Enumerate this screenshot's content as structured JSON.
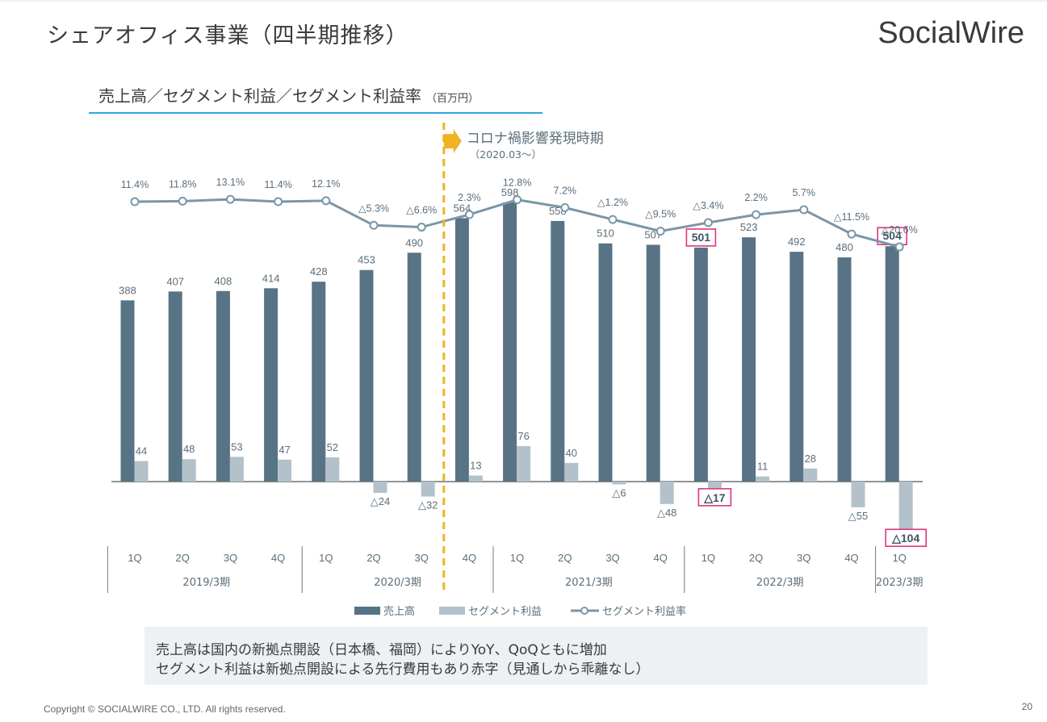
{
  "slide": {
    "title": "シェアオフィス事業（四半期推移）",
    "logo_text": "SocialWire",
    "section_heading": "売上高／セグメント利益／セグメント利益率",
    "section_unit": "（百万円）",
    "summary": [
      "売上高は国内の新拠点開設（日本橋、福岡）によりYoY、QoQともに増加",
      "セグメント利益は新拠点開設による先行費用もあり赤字（見通しから乖離なし）"
    ],
    "copyright": "Copyright © SOCIALWIRE CO., LTD. All rights reserved.",
    "page_number": "20"
  },
  "chart_data": {
    "type": "bar",
    "categories": [
      "1Q",
      "2Q",
      "3Q",
      "4Q",
      "1Q",
      "2Q",
      "3Q",
      "4Q",
      "1Q",
      "2Q",
      "3Q",
      "4Q",
      "1Q",
      "2Q",
      "3Q",
      "4Q",
      "1Q"
    ],
    "groups": [
      {
        "label": "2019/3期",
        "count": 4
      },
      {
        "label": "2020/3期",
        "count": 4
      },
      {
        "label": "2021/3期",
        "count": 4
      },
      {
        "label": "2022/3期",
        "count": 4
      },
      {
        "label": "2023/3期",
        "count": 1
      }
    ],
    "series": [
      {
        "name": "売上高",
        "kind": "bar",
        "color": "#587385",
        "values": [
          388,
          407,
          408,
          414,
          428,
          453,
          490,
          564,
          598,
          558,
          510,
          507,
          501,
          523,
          492,
          480,
          504
        ],
        "labels": [
          "388",
          "407",
          "408",
          "414",
          "428",
          "453",
          "490",
          "564",
          "598",
          "558",
          "510",
          "507",
          "501",
          "523",
          "492",
          "480",
          "504"
        ],
        "highlight": [
          12,
          16
        ]
      },
      {
        "name": "セグメント利益",
        "kind": "bar",
        "color": "#b3c1cb",
        "values": [
          44,
          48,
          53,
          47,
          52,
          -24,
          -32,
          13,
          76,
          40,
          -6,
          -48,
          -17,
          11,
          28,
          -55,
          -104
        ],
        "labels": [
          "44",
          "48",
          "53",
          "47",
          "52",
          "△24",
          "△32",
          "13",
          "76",
          "40",
          "△6",
          "△48",
          "△17",
          "11",
          "28",
          "△55",
          "△104"
        ],
        "highlight": [
          12,
          16
        ]
      },
      {
        "name": "セグメント利益率",
        "kind": "line",
        "color": "#7b96a8",
        "values": [
          11.4,
          11.8,
          13.1,
          11.4,
          12.1,
          -5.3,
          -6.6,
          2.3,
          12.8,
          7.2,
          -1.2,
          -9.5,
          -3.4,
          2.2,
          5.7,
          -11.5,
          -20.6
        ],
        "labels": [
          "11.4%",
          "11.8%",
          "13.1%",
          "11.4%",
          "12.1%",
          "△5.3%",
          "△6.6%",
          "2.3%",
          "12.8%",
          "7.2%",
          "△1.2%",
          "△9.5%",
          "△3.4%",
          "2.2%",
          "5.7%",
          "△11.5%",
          "△20.6%"
        ]
      }
    ],
    "annotation": {
      "text": "コロナ禍影響発現時期",
      "subtext": "（2020.03～）",
      "after_index": 6,
      "color": "#f0b323"
    },
    "highlight_color": "#e0357d"
  }
}
